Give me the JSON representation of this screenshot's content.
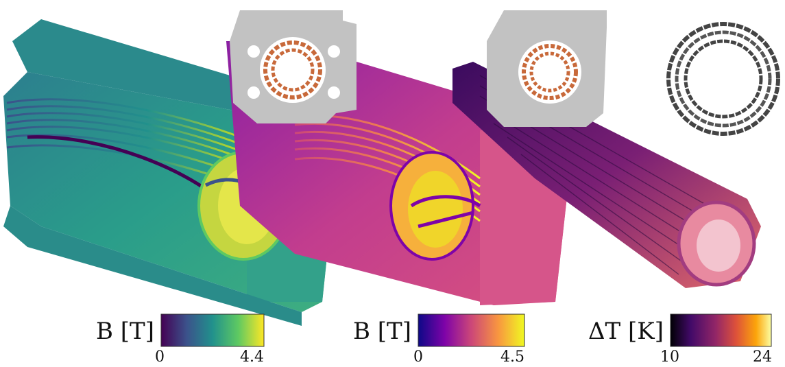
{
  "panels": [
    {
      "id": "viridis",
      "colorbar": {
        "label": "B [T]",
        "min": "0",
        "max": "4.4",
        "colors": [
          "#440154",
          "#3b528b",
          "#21918c",
          "#5ec962",
          "#fde725"
        ]
      }
    },
    {
      "id": "plasma",
      "colorbar": {
        "label": "B [T]",
        "min": "0",
        "max": "4.5",
        "colors": [
          "#0d0887",
          "#7e03a8",
          "#cc4778",
          "#f89540",
          "#f0f921"
        ]
      }
    },
    {
      "id": "inferno",
      "colorbar": {
        "label": "ΔT [K]",
        "min": "10",
        "max": "24",
        "colors": [
          "#000004",
          "#420a68",
          "#932667",
          "#dd513a",
          "#fca50a",
          "#fcffa4"
        ]
      }
    }
  ],
  "colors": {
    "insert_gray": "#c2c2c2",
    "insert_coil": "#c8693a",
    "viridis_body": "#2a9d8a",
    "plasma_body": "#d0438c"
  }
}
